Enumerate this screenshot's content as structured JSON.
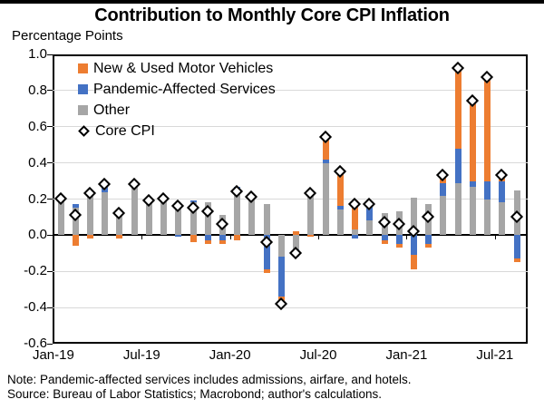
{
  "chart_data": {
    "type": "bar",
    "stacked": true,
    "overlay_marker_series": "Core CPI",
    "title": "Contribution to Monthly Core CPI Inflation",
    "units_label": "Percentage Points",
    "ylim": [
      -0.6,
      1.0
    ],
    "y_tick_step": 0.2,
    "y_tick_labels": [
      "1.0",
      "0.8",
      "0.6",
      "0.4",
      "0.2",
      "0.0",
      "-0.2",
      "-0.4",
      "-0.6"
    ],
    "grid": "horizontal-light",
    "legend_position": "inside-top-left",
    "categories": [
      "Jan-19",
      "Feb-19",
      "Mar-19",
      "Apr-19",
      "May-19",
      "Jun-19",
      "Jul-19",
      "Aug-19",
      "Sep-19",
      "Oct-19",
      "Nov-19",
      "Dec-19",
      "Jan-20",
      "Feb-20",
      "Mar-20",
      "Apr-20",
      "May-20",
      "Jun-20",
      "Jul-20",
      "Aug-20",
      "Sep-20",
      "Oct-20",
      "Nov-20",
      "Dec-20",
      "Jan-21",
      "Feb-21",
      "Mar-21",
      "Apr-21",
      "May-21",
      "Jun-21",
      "Jul-21",
      "Aug-21"
    ],
    "x_tick_labels": [
      "Jan-19",
      "Jul-19",
      "Jan-20",
      "Jul-20",
      "Jan-21",
      "Jul-21"
    ],
    "x_tick_indices": [
      0,
      6,
      12,
      18,
      24,
      30
    ],
    "series": [
      {
        "name": "New & Used Motor Vehicles",
        "color": "#ED7D31",
        "values": [
          0.0,
          -0.06,
          -0.02,
          0.0,
          -0.02,
          0.01,
          0.0,
          0.0,
          0.0,
          -0.04,
          -0.02,
          -0.02,
          -0.03,
          0.0,
          -0.02,
          -0.04,
          0.02,
          -0.01,
          0.12,
          0.19,
          0.16,
          0.0,
          -0.02,
          -0.02,
          -0.08,
          -0.02,
          0.04,
          0.44,
          0.44,
          0.57,
          0.03,
          -0.02
        ]
      },
      {
        "name": "Pandemic-Affected Services",
        "color": "#4472C4",
        "values": [
          0.0,
          0.02,
          0.03,
          0.04,
          0.0,
          0.0,
          0.0,
          0.0,
          -0.01,
          0.01,
          -0.03,
          -0.03,
          0.03,
          0.0,
          -0.19,
          -0.22,
          -0.04,
          0.0,
          0.02,
          0.02,
          -0.02,
          0.09,
          -0.03,
          -0.05,
          -0.11,
          -0.05,
          0.07,
          0.19,
          0.03,
          0.1,
          0.12,
          -0.13
        ]
      },
      {
        "name": "Other",
        "color": "#A6A6A6",
        "values": [
          0.2,
          0.15,
          0.22,
          0.24,
          0.14,
          0.27,
          0.19,
          0.2,
          0.17,
          0.18,
          0.18,
          0.11,
          0.24,
          0.21,
          0.17,
          -0.12,
          -0.08,
          0.24,
          0.4,
          0.14,
          0.03,
          0.08,
          0.12,
          0.13,
          0.21,
          0.17,
          0.22,
          0.29,
          0.27,
          0.2,
          0.18,
          0.25
        ]
      },
      {
        "name": "Core CPI",
        "marker": "open-diamond",
        "values": [
          0.2,
          0.11,
          0.23,
          0.28,
          0.12,
          0.28,
          0.19,
          0.2,
          0.16,
          0.15,
          0.13,
          0.06,
          0.24,
          0.21,
          -0.04,
          -0.38,
          -0.1,
          0.23,
          0.54,
          0.35,
          0.17,
          0.17,
          0.07,
          0.06,
          0.02,
          0.1,
          0.33,
          0.92,
          0.74,
          0.87,
          0.33,
          0.1
        ]
      }
    ],
    "stack_order": [
      2,
      1,
      0
    ],
    "note": "Note:  Pandemic-affected services includes admissions, airfare, and hotels.",
    "source": "Source: Bureau of Labor Statistics; Macrobond; author's calculations."
  }
}
